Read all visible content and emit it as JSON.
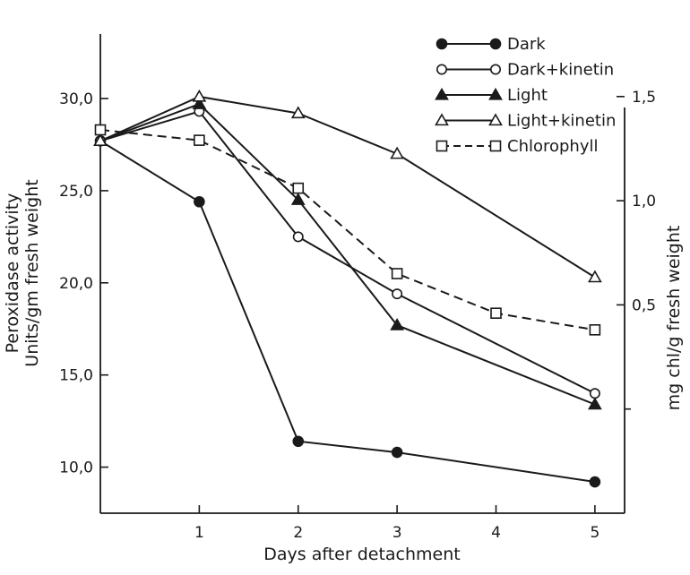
{
  "chart_data": {
    "type": "line",
    "xlabel": "Days after detachment",
    "ylabel_left": [
      "Peroxidase activity",
      "Units/gm fresh weight"
    ],
    "ylabel_right": "mg chl/g fresh weight",
    "x_ticks": [
      1,
      2,
      3,
      4,
      5
    ],
    "x_tick_labels": [
      "1",
      "2",
      "3",
      "4",
      "5"
    ],
    "xlim": [
      0,
      5.3
    ],
    "left_ticks": [
      10,
      15,
      20,
      25,
      30
    ],
    "left_tick_labels": [
      "10,0",
      "15,0",
      "20,0",
      "25,0",
      "30,0"
    ],
    "ylim_left": [
      7.5,
      33.5
    ],
    "right_ticks": [
      0.5,
      1.0,
      1.5
    ],
    "right_tick_labels": [
      "0,5",
      "1,0",
      "1,5"
    ],
    "right_minor_ticks": [
      0
    ],
    "ylim_right": [
      -0.5,
      1.8
    ],
    "grid": false,
    "legend_position": "top-right",
    "series": [
      {
        "name": "Dark",
        "axis": "left",
        "marker": "circle-filled",
        "dash": false,
        "x": [
          0,
          1,
          2,
          3,
          5
        ],
        "y": [
          27.7,
          24.4,
          11.4,
          10.8,
          9.2
        ]
      },
      {
        "name": "Dark+kinetin",
        "axis": "left",
        "marker": "circle-open",
        "dash": false,
        "x": [
          0,
          1,
          2,
          3,
          5
        ],
        "y": [
          27.7,
          29.3,
          22.5,
          19.4,
          14.0
        ]
      },
      {
        "name": "Light",
        "axis": "left",
        "marker": "triangle-filled",
        "dash": false,
        "x": [
          0,
          1,
          2,
          3,
          5
        ],
        "y": [
          27.7,
          29.7,
          24.5,
          17.7,
          13.4
        ]
      },
      {
        "name": "Light+kinetin",
        "axis": "left",
        "marker": "triangle-open",
        "dash": false,
        "x": [
          0,
          1,
          2,
          3,
          5
        ],
        "y": [
          27.7,
          30.1,
          29.2,
          27.0,
          20.3
        ]
      },
      {
        "name": "Chlorophyll",
        "axis": "right",
        "marker": "square-open",
        "dash": true,
        "x": [
          0,
          1,
          2,
          3,
          4,
          5
        ],
        "y": [
          1.34,
          1.29,
          1.06,
          0.65,
          0.46,
          0.38
        ]
      }
    ]
  }
}
